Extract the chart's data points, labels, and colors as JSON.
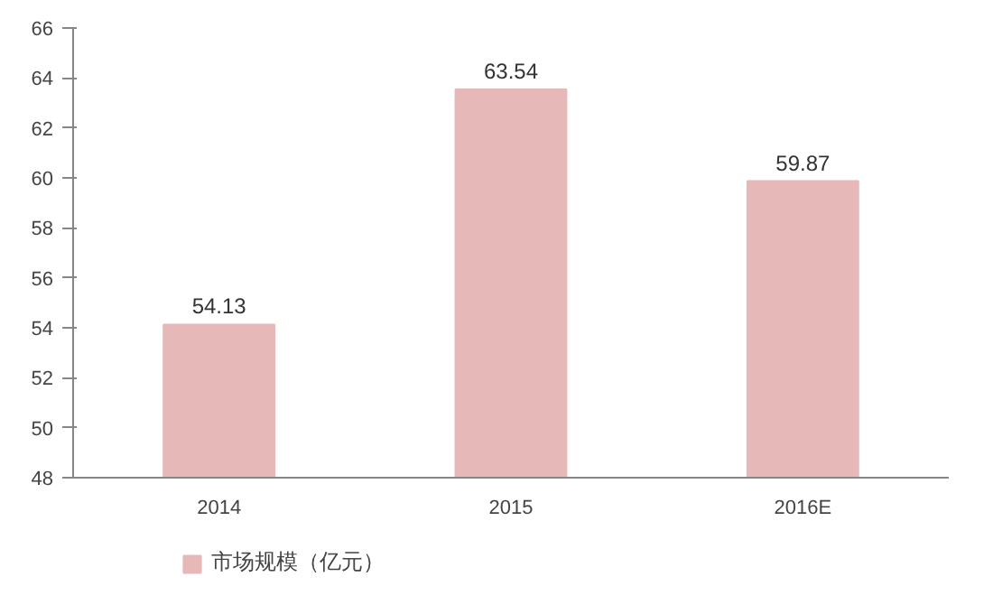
{
  "chart_data": {
    "type": "bar",
    "categories": [
      "2014",
      "2015",
      "2016E"
    ],
    "series": [
      {
        "name": "市场规模（亿元）",
        "color": "#e6b9b8",
        "values": [
          54.13,
          63.54,
          59.87
        ]
      }
    ],
    "ylim": [
      48,
      66
    ],
    "yticks": [
      48,
      50,
      52,
      54,
      56,
      58,
      60,
      62,
      64,
      66
    ],
    "data_labels": true,
    "grid": false,
    "legend": "bottom"
  }
}
